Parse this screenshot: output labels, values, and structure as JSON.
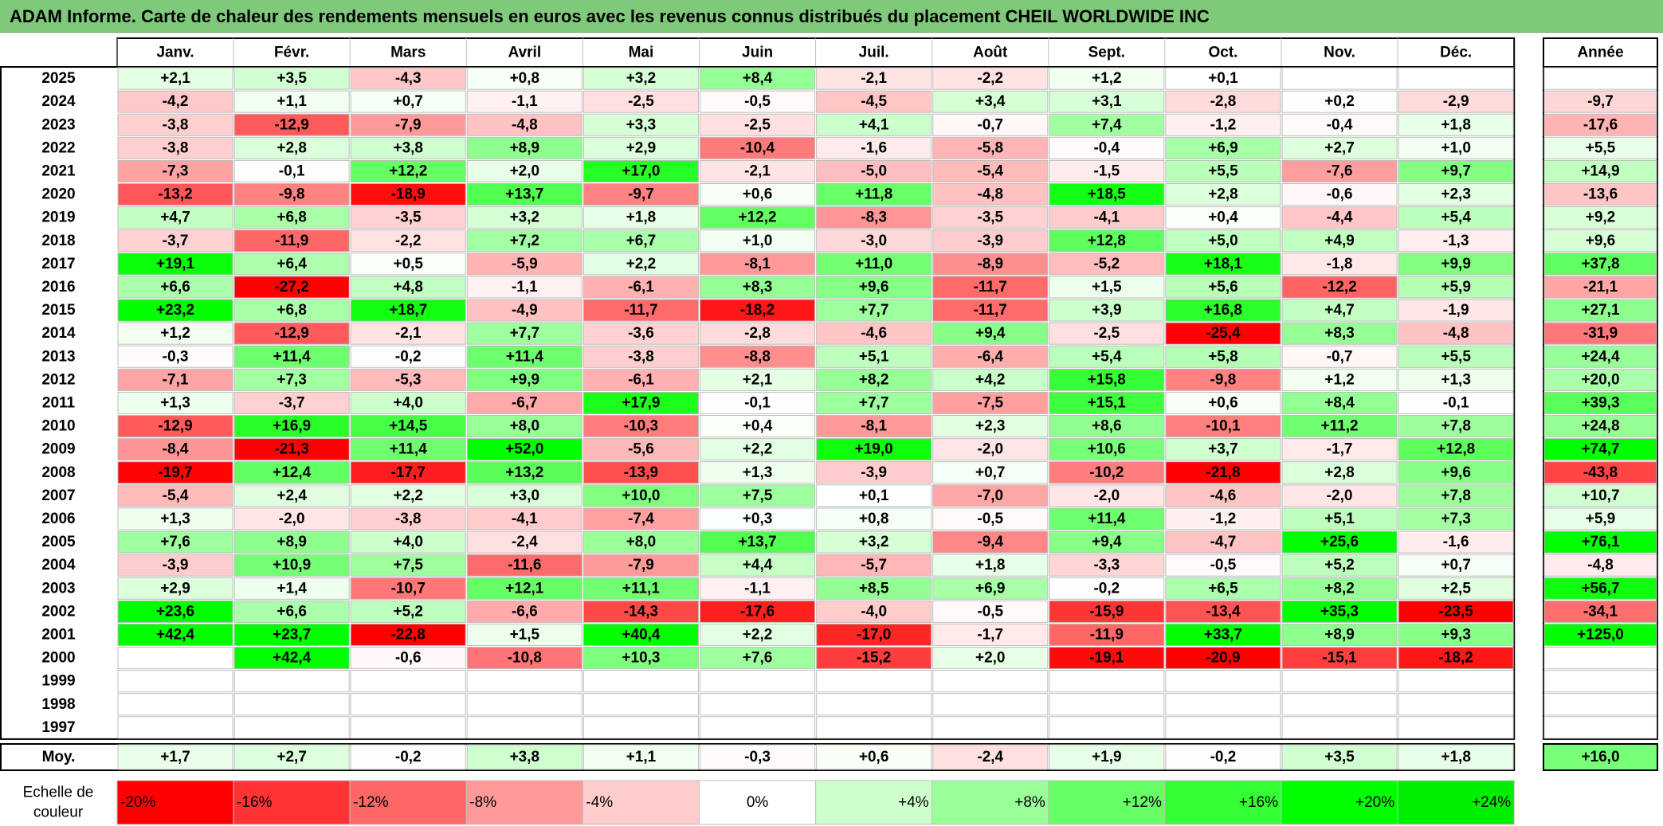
{
  "title": "ADAM Informe. Carte de chaleur des rendements mensuels en euros avec les revenus connus distribués du placement CHEIL WORLDWIDE INC",
  "chart_data": {
    "type": "heatmap",
    "months": [
      "Janv.",
      "Févr.",
      "Mars",
      "Avril",
      "Mai",
      "Juin",
      "Juil.",
      "Août",
      "Sept.",
      "Oct.",
      "Nov.",
      "Déc."
    ],
    "year_header": "Année",
    "rows": [
      {
        "year": "2025",
        "values": [
          "+2,1",
          "+3,5",
          "-4,3",
          "+0,8",
          "+3,2",
          "+8,4",
          "-2,1",
          "-2,2",
          "+1,2",
          "+0,1",
          "",
          ""
        ],
        "annual": ""
      },
      {
        "year": "2024",
        "values": [
          "-4,2",
          "+1,1",
          "+0,7",
          "-1,1",
          "-2,5",
          "-0,5",
          "-4,5",
          "+3,4",
          "+3,1",
          "-2,8",
          "+0,2",
          "-2,9"
        ],
        "annual": "-9,7"
      },
      {
        "year": "2023",
        "values": [
          "-3,8",
          "-12,9",
          "-7,9",
          "-4,8",
          "+3,3",
          "-2,5",
          "+4,1",
          "-0,7",
          "+7,4",
          "-1,2",
          "-0,4",
          "+1,8"
        ],
        "annual": "-17,6"
      },
      {
        "year": "2022",
        "values": [
          "-3,8",
          "+2,8",
          "+3,8",
          "+8,9",
          "+2,9",
          "-10,4",
          "-1,6",
          "-5,8",
          "-0,4",
          "+6,9",
          "+2,7",
          "+1,0"
        ],
        "annual": "+5,5"
      },
      {
        "year": "2021",
        "values": [
          "-7,3",
          "-0,1",
          "+12,2",
          "+2,0",
          "+17,0",
          "-2,1",
          "-5,0",
          "-5,4",
          "-1,5",
          "+5,5",
          "-7,6",
          "+9,7"
        ],
        "annual": "+14,9"
      },
      {
        "year": "2020",
        "values": [
          "-13,2",
          "-9,8",
          "-18,9",
          "+13,7",
          "-9,7",
          "+0,6",
          "+11,8",
          "-4,8",
          "+18,5",
          "+2,8",
          "-0,6",
          "+2,3"
        ],
        "annual": "-13,6"
      },
      {
        "year": "2019",
        "values": [
          "+4,7",
          "+6,8",
          "-3,5",
          "+3,2",
          "+1,8",
          "+12,2",
          "-8,3",
          "-3,5",
          "-4,1",
          "+0,4",
          "-4,4",
          "+5,4"
        ],
        "annual": "+9,2"
      },
      {
        "year": "2018",
        "values": [
          "-3,7",
          "-11,9",
          "-2,2",
          "+7,2",
          "+6,7",
          "+1,0",
          "-3,0",
          "-3,9",
          "+12,8",
          "+5,0",
          "+4,9",
          "-1,3"
        ],
        "annual": "+9,6"
      },
      {
        "year": "2017",
        "values": [
          "+19,1",
          "+6,4",
          "+0,5",
          "-5,9",
          "+2,2",
          "-8,1",
          "+11,0",
          "-8,9",
          "-5,2",
          "+18,1",
          "-1,8",
          "+9,9"
        ],
        "annual": "+37,8"
      },
      {
        "year": "2016",
        "values": [
          "+6,6",
          "-27,2",
          "+4,8",
          "-1,1",
          "-6,1",
          "+8,3",
          "+9,6",
          "-11,7",
          "+1,5",
          "+5,6",
          "-12,2",
          "+5,9"
        ],
        "annual": "-21,1"
      },
      {
        "year": "2015",
        "values": [
          "+23,2",
          "+6,8",
          "+18,7",
          "-4,9",
          "-11,7",
          "-18,2",
          "+7,7",
          "-11,7",
          "+3,9",
          "+16,8",
          "+4,7",
          "-1,9"
        ],
        "annual": "+27,1"
      },
      {
        "year": "2014",
        "values": [
          "+1,2",
          "-12,9",
          "-2,1",
          "+7,7",
          "-3,6",
          "-2,8",
          "-4,6",
          "+9,4",
          "-2,5",
          "-25,4",
          "+8,3",
          "-4,8"
        ],
        "annual": "-31,9"
      },
      {
        "year": "2013",
        "values": [
          "-0,3",
          "+11,4",
          "-0,2",
          "+11,4",
          "-3,8",
          "-8,8",
          "+5,1",
          "-6,4",
          "+5,4",
          "+5,8",
          "-0,7",
          "+5,5"
        ],
        "annual": "+24,4"
      },
      {
        "year": "2012",
        "values": [
          "-7,1",
          "+7,3",
          "-5,3",
          "+9,9",
          "-6,1",
          "+2,1",
          "+8,2",
          "+4,2",
          "+15,8",
          "-9,8",
          "+1,2",
          "+1,3"
        ],
        "annual": "+20,0"
      },
      {
        "year": "2011",
        "values": [
          "+1,3",
          "-3,7",
          "+4,0",
          "-6,7",
          "+17,9",
          "-0,1",
          "+7,7",
          "-7,5",
          "+15,1",
          "+0,6",
          "+8,4",
          "-0,1"
        ],
        "annual": "+39,3"
      },
      {
        "year": "2010",
        "values": [
          "-12,9",
          "+16,9",
          "+14,5",
          "+8,0",
          "-10,3",
          "+0,4",
          "-8,1",
          "+2,3",
          "+8,6",
          "-10,1",
          "+11,2",
          "+7,8"
        ],
        "annual": "+24,8"
      },
      {
        "year": "2009",
        "values": [
          "-8,4",
          "-21,3",
          "+11,4",
          "+52,0",
          "-5,6",
          "+2,2",
          "+19,0",
          "-2,0",
          "+10,6",
          "+3,7",
          "-1,7",
          "+12,8"
        ],
        "annual": "+74,7"
      },
      {
        "year": "2008",
        "values": [
          "-19,7",
          "+12,4",
          "-17,7",
          "+13,2",
          "-13,9",
          "+1,3",
          "-3,9",
          "+0,7",
          "-10,2",
          "-21,8",
          "+2,8",
          "+9,6"
        ],
        "annual": "-43,8"
      },
      {
        "year": "2007",
        "values": [
          "-5,4",
          "+2,4",
          "+2,2",
          "+3,0",
          "+10,0",
          "+7,5",
          "+0,1",
          "-7,0",
          "-2,0",
          "-4,6",
          "-2,0",
          "+7,8"
        ],
        "annual": "+10,7"
      },
      {
        "year": "2006",
        "values": [
          "+1,3",
          "-2,0",
          "-3,8",
          "-4,1",
          "-7,4",
          "+0,3",
          "+0,8",
          "-0,5",
          "+11,4",
          "-1,2",
          "+5,1",
          "+7,3"
        ],
        "annual": "+5,9"
      },
      {
        "year": "2005",
        "values": [
          "+7,6",
          "+8,9",
          "+4,0",
          "-2,4",
          "+8,0",
          "+13,7",
          "+3,2",
          "-9,4",
          "+9,4",
          "-4,7",
          "+25,6",
          "-1,6"
        ],
        "annual": "+76,1"
      },
      {
        "year": "2004",
        "values": [
          "-3,9",
          "+10,9",
          "+7,5",
          "-11,6",
          "-7,9",
          "+4,4",
          "-5,7",
          "+1,8",
          "-3,3",
          "-0,5",
          "+5,2",
          "+0,7"
        ],
        "annual": "-4,8"
      },
      {
        "year": "2003",
        "values": [
          "+2,9",
          "+1,4",
          "-10,7",
          "+12,1",
          "+11,1",
          "-1,1",
          "+8,5",
          "+6,9",
          "-0,2",
          "+6,5",
          "+8,2",
          "+2,5"
        ],
        "annual": "+56,7"
      },
      {
        "year": "2002",
        "values": [
          "+23,6",
          "+6,6",
          "+5,2",
          "-6,6",
          "-14,3",
          "-17,6",
          "-4,0",
          "-0,5",
          "-15,9",
          "-13,4",
          "+35,3",
          "-23,5"
        ],
        "annual": "-34,1"
      },
      {
        "year": "2001",
        "values": [
          "+42,4",
          "+23,7",
          "-22,8",
          "+1,5",
          "+40,4",
          "+2,2",
          "-17,0",
          "-1,7",
          "-11,9",
          "+33,7",
          "+8,9",
          "+9,3"
        ],
        "annual": "+125,0"
      },
      {
        "year": "2000",
        "values": [
          "",
          "+42,4",
          "-0,6",
          "-10,8",
          "+10,3",
          "+7,6",
          "-15,2",
          "+2,0",
          "-19,1",
          "-20,9",
          "-15,1",
          "-18,2"
        ],
        "annual": ""
      },
      {
        "year": "1999",
        "values": [
          "",
          "",
          "",
          "",
          "",
          "",
          "",
          "",
          "",
          "",
          "",
          ""
        ],
        "annual": ""
      },
      {
        "year": "1998",
        "values": [
          "",
          "",
          "",
          "",
          "",
          "",
          "",
          "",
          "",
          "",
          "",
          ""
        ],
        "annual": ""
      },
      {
        "year": "1997",
        "values": [
          "",
          "",
          "",
          "",
          "",
          "",
          "",
          "",
          "",
          "",
          "",
          ""
        ],
        "annual": ""
      }
    ],
    "average": {
      "label": "Moy.",
      "values": [
        "+1,7",
        "+2,7",
        "-0,2",
        "+3,8",
        "+1,1",
        "-0,3",
        "+0,6",
        "-2,4",
        "+1,9",
        "-0,2",
        "+3,5",
        "+1,8"
      ],
      "annual": "+16,0"
    },
    "scale": {
      "label_line1": "Echelle de",
      "label_line2": "couleur",
      "steps": [
        {
          "label": "-20%",
          "value": -20,
          "color": "#ff0000"
        },
        {
          "label": "-16%",
          "value": -16,
          "color": "#ff3333"
        },
        {
          "label": "-12%",
          "value": -12,
          "color": "#ff6666"
        },
        {
          "label": "-8%",
          "value": -8,
          "color": "#ff9999"
        },
        {
          "label": "-4%",
          "value": -4,
          "color": "#ffcccc"
        },
        {
          "label": "0%",
          "value": 0,
          "color": "#ffffff"
        },
        {
          "label": "+4%",
          "value": 4,
          "color": "#ccffcc"
        },
        {
          "label": "+8%",
          "value": 8,
          "color": "#99ff99"
        },
        {
          "label": "+12%",
          "value": 12,
          "color": "#66ff66"
        },
        {
          "label": "+16%",
          "value": 16,
          "color": "#33ff33"
        },
        {
          "label": "+20%",
          "value": 20,
          "color": "#00ff00"
        },
        {
          "label": "+24%",
          "value": 24,
          "color": "#00ee00"
        }
      ]
    }
  },
  "colors": {
    "title_background": "#7fc97a",
    "negative_max": "#ff0000",
    "positive_max": "#00ff00",
    "grid": "#bfbfbf",
    "border": "#000000"
  }
}
